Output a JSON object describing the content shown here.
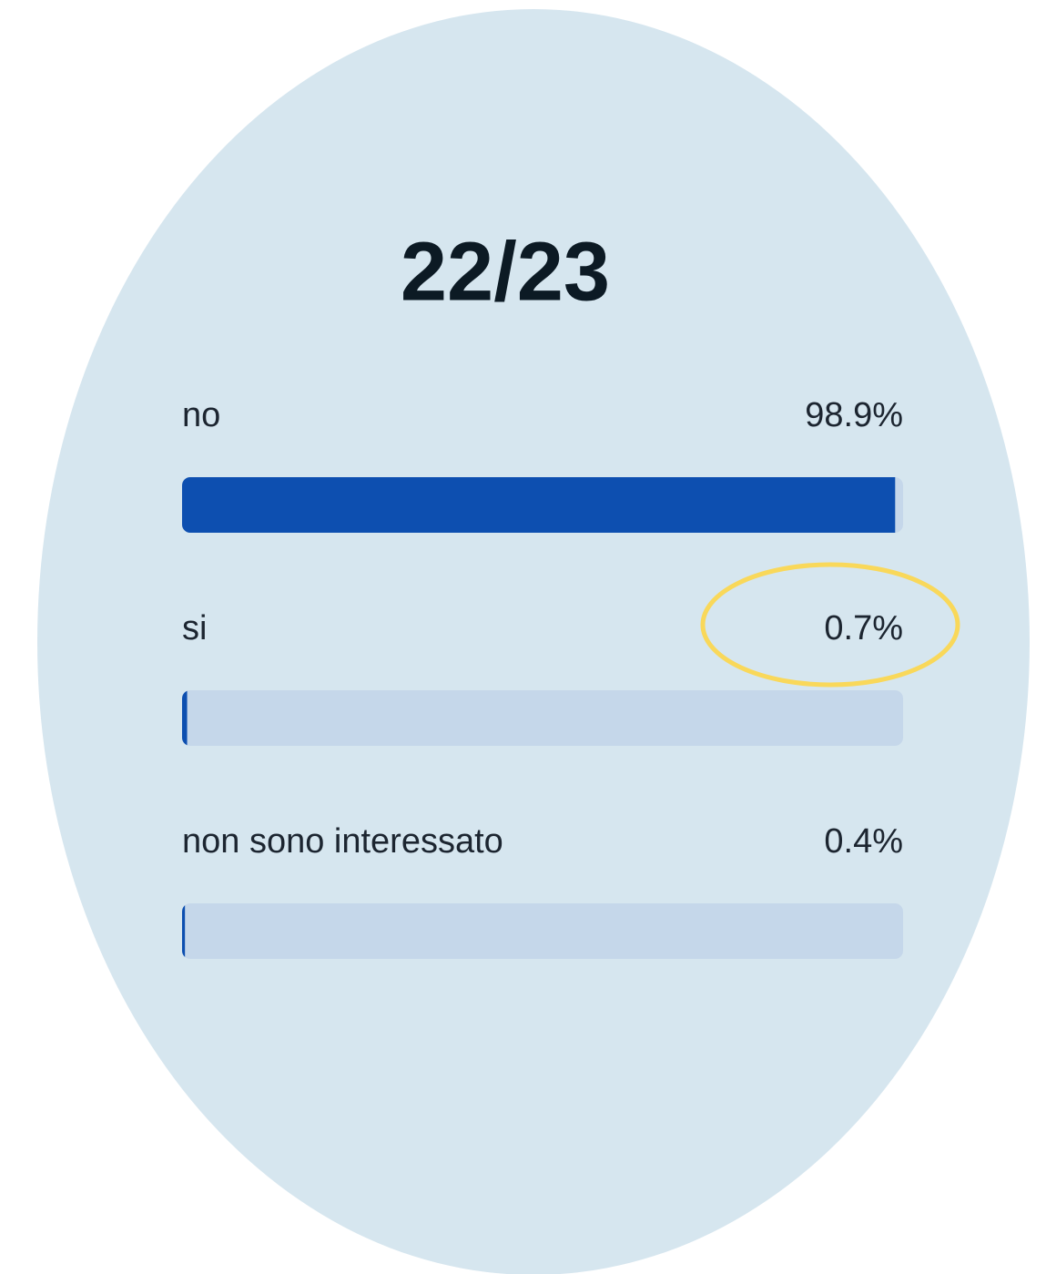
{
  "chart_data": {
    "type": "bar",
    "orientation": "horizontal",
    "title": "22/23",
    "categories": [
      "no",
      "si",
      "non sono interessato"
    ],
    "values": [
      98.9,
      0.7,
      0.4
    ],
    "value_labels": [
      "98.9%",
      "0.7%",
      "0.4%"
    ],
    "color": "#0d4fb0",
    "track_color": "#c5d7ea",
    "xlim": [
      0,
      100
    ]
  }
}
